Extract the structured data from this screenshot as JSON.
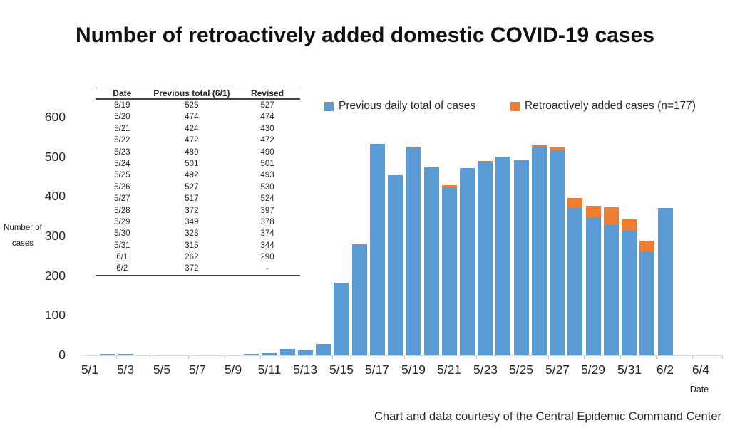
{
  "title": "Number of retroactively added domestic COVID-19 cases",
  "footer": "Chart and data courtesy of the Central Epidemic Command Center",
  "colors": {
    "previous_blue": "#5B9BD5",
    "added_orange": "#ED7D31",
    "axis_gray": "#d9d9d9"
  },
  "legend": {
    "items": [
      {
        "label": "Previous daily total of cases",
        "color": "#5B9BD5"
      },
      {
        "label": "Retroactively added cases (n=177)",
        "color": "#ED7D31"
      }
    ]
  },
  "table": {
    "headers": [
      "Date",
      "Previous total (6/1)",
      "Revised"
    ],
    "rows": [
      [
        "5/19",
        "525",
        "527"
      ],
      [
        "5/20",
        "474",
        "474"
      ],
      [
        "5/21",
        "424",
        "430"
      ],
      [
        "5/22",
        "472",
        "472"
      ],
      [
        "5/23",
        "489",
        "490"
      ],
      [
        "5/24",
        "501",
        "501"
      ],
      [
        "5/25",
        "492",
        "493"
      ],
      [
        "5/26",
        "527",
        "530"
      ],
      [
        "5/27",
        "517",
        "524"
      ],
      [
        "5/28",
        "372",
        "397"
      ],
      [
        "5/29",
        "349",
        "378"
      ],
      [
        "5/30",
        "328",
        "374"
      ],
      [
        "5/31",
        "315",
        "344"
      ],
      [
        "6/1",
        "262",
        "290"
      ],
      [
        "6/2",
        "372",
        "-"
      ]
    ]
  },
  "chart_data": {
    "type": "bar",
    "stacked": true,
    "title": "Number of retroactively added domestic COVID-19 cases",
    "xlabel": "Date",
    "ylabel": "Number of cases",
    "ylim": [
      0,
      600
    ],
    "y_ticks": [
      0,
      100,
      200,
      300,
      400,
      500,
      600
    ],
    "grid": false,
    "legend_position": "top",
    "x_tick_label_every": 2,
    "x": [
      "5/1",
      "5/2",
      "5/3",
      "5/4",
      "5/5",
      "5/6",
      "5/7",
      "5/8",
      "5/9",
      "5/10",
      "5/11",
      "5/12",
      "5/13",
      "5/14",
      "5/15",
      "5/16",
      "5/17",
      "5/18",
      "5/19",
      "5/20",
      "5/21",
      "5/22",
      "5/23",
      "5/24",
      "5/25",
      "5/26",
      "5/27",
      "5/28",
      "5/29",
      "5/30",
      "5/31",
      "6/1",
      "6/2",
      "6/3",
      "6/4"
    ],
    "series": [
      {
        "name": "Previous daily total of cases",
        "color": "#5B9BD5",
        "values": [
          0,
          4,
          3,
          0,
          0,
          0,
          0,
          0,
          0,
          3,
          7,
          16,
          13,
          29,
          183,
          280,
          533,
          455,
          525,
          474,
          424,
          472,
          489,
          501,
          492,
          527,
          517,
          372,
          349,
          328,
          315,
          262,
          372,
          0,
          0
        ]
      },
      {
        "name": "Retroactively added cases (n=177)",
        "color": "#ED7D31",
        "values": [
          0,
          0,
          0,
          0,
          0,
          0,
          0,
          0,
          0,
          0,
          0,
          0,
          0,
          0,
          0,
          0,
          0,
          0,
          2,
          0,
          6,
          0,
          1,
          0,
          1,
          3,
          7,
          25,
          29,
          46,
          29,
          28,
          0,
          0,
          0
        ]
      }
    ]
  }
}
